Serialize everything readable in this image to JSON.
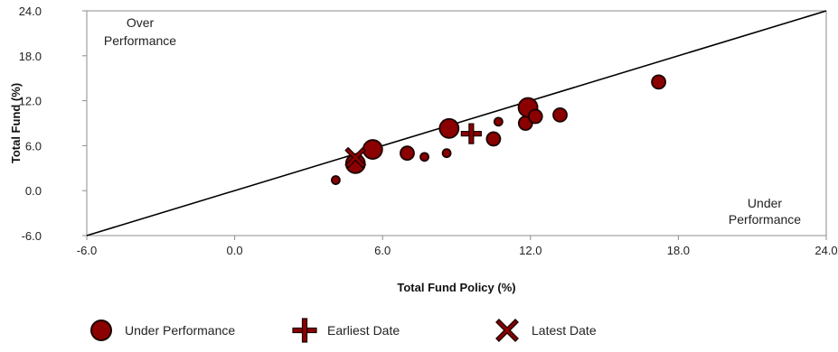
{
  "chart_data": {
    "type": "scatter",
    "xlabel": "Total Fund Policy (%)",
    "ylabel": "Total Fund (%)",
    "xlim": [
      -6.0,
      24.0
    ],
    "ylim": [
      -6.0,
      24.0
    ],
    "x_ticks": [
      "-6.0",
      "0.0",
      "6.0",
      "12.0",
      "18.0",
      "24.0"
    ],
    "y_ticks": [
      "-6.0",
      "0.0",
      "6.0",
      "12.0",
      "18.0",
      "24.0"
    ],
    "grid": false,
    "reference_line": {
      "from": [
        -6.0,
        -6.0
      ],
      "to": [
        24.0,
        24.0
      ]
    },
    "annotations": {
      "over_performance": [
        "Over",
        "Performance"
      ],
      "under_performance": [
        "Under",
        "Performance"
      ]
    },
    "colors": {
      "marker_fill": "#8b0000",
      "marker_stroke": "#1a0000",
      "line": "#000000",
      "axis": "#8c8c8c"
    },
    "series": [
      {
        "name": "Under Performance",
        "marker": "circle",
        "points": [
          {
            "x": 4.1,
            "y": 1.4,
            "size": "small"
          },
          {
            "x": 4.9,
            "y": 3.6,
            "size": "large"
          },
          {
            "x": 5.6,
            "y": 5.5,
            "size": "large"
          },
          {
            "x": 7.0,
            "y": 5.0,
            "size": "medium"
          },
          {
            "x": 7.7,
            "y": 4.5,
            "size": "small"
          },
          {
            "x": 8.6,
            "y": 5.0,
            "size": "small"
          },
          {
            "x": 8.7,
            "y": 8.3,
            "size": "large"
          },
          {
            "x": 10.5,
            "y": 6.9,
            "size": "medium"
          },
          {
            "x": 10.7,
            "y": 9.2,
            "size": "small"
          },
          {
            "x": 11.8,
            "y": 9.0,
            "size": "medium"
          },
          {
            "x": 11.9,
            "y": 11.1,
            "size": "large"
          },
          {
            "x": 12.2,
            "y": 9.9,
            "size": "medium"
          },
          {
            "x": 13.2,
            "y": 10.1,
            "size": "medium"
          },
          {
            "x": 17.2,
            "y": 14.5,
            "size": "medium"
          }
        ]
      },
      {
        "name": "Earliest Date",
        "marker": "plus",
        "points": [
          {
            "x": 9.6,
            "y": 7.6
          }
        ]
      },
      {
        "name": "Latest Date",
        "marker": "cross",
        "points": [
          {
            "x": 4.9,
            "y": 4.4
          }
        ]
      }
    ],
    "legend": {
      "placement": "bottom",
      "entries": [
        "Under Performance",
        "Earliest Date",
        "Latest Date"
      ]
    }
  }
}
